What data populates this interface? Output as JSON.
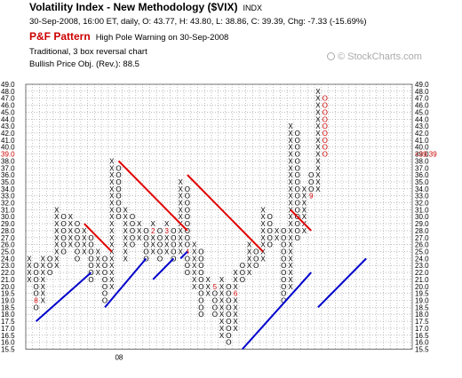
{
  "header": {
    "title": "Volatility Index - New Methodology ($VIX)",
    "exchange": "INDX",
    "quote": "30-Sep-2008, 16:00 ET, daily, O: 43.77, H: 43.80, L: 38.86, C: 39.39, Chg: -7.33 (-15.69%)",
    "pattern_name": "P&F Pattern",
    "pattern_desc": "High Pole Warning on 30-Sep-2008",
    "method": "Traditional, 3 box reversal chart",
    "objective": "Bullish Price Obj. (Rev.): 88.5"
  },
  "watermark": "© StockCharts.com",
  "chart_data": {
    "type": "point-and-figure",
    "box_size": 1,
    "reversal": 3,
    "y_levels": [
      49,
      48,
      47,
      46,
      45,
      44,
      43,
      42,
      41,
      40,
      39,
      38,
      37,
      36,
      35,
      34,
      33,
      32,
      31,
      30,
      29,
      28,
      27,
      26,
      25,
      24,
      23,
      22,
      21,
      20,
      19.5,
      19,
      18.5,
      18,
      17.5,
      17,
      16.5,
      16,
      15.5
    ],
    "y_tick_labels": [
      "49.0",
      "48.0",
      "47.0",
      "46.0",
      "45.0",
      "44.0",
      "43.0",
      "42.0",
      "41.0",
      "40.0",
      "39.0",
      "38.0",
      "37.0",
      "36.0",
      "35.0",
      "34.0",
      "33.0",
      "32.0",
      "31.0",
      "30.0",
      "29.0",
      "28.0",
      "27.0",
      "26.0",
      "25.0",
      "24.0",
      "23.0",
      "22.0",
      "21.0",
      "20.0",
      "19.5",
      "19.0",
      "18.5",
      "18.0",
      "17.5",
      "17.0",
      "16.5",
      "16.0",
      "15.5"
    ],
    "last_price_label": "39.0",
    "last_price_marker": "<39.39",
    "x_label": "08",
    "x_label_column": 13,
    "columns": [
      {
        "t": "X",
        "from": 21,
        "to": 24
      },
      {
        "t": "O",
        "from": 18.5,
        "to": 23
      },
      {
        "t": "X",
        "from": 19,
        "to": 24
      },
      {
        "t": "O",
        "from": 22,
        "to": 24
      },
      {
        "t": "X",
        "from": 23,
        "to": 31
      },
      {
        "t": "O",
        "from": 25,
        "to": 30
      },
      {
        "t": "X",
        "from": 26,
        "to": 30
      },
      {
        "t": "O",
        "from": 24,
        "to": 29
      },
      {
        "t": "X",
        "from": 25,
        "to": 28
      },
      {
        "t": "O",
        "from": 21,
        "to": 27
      },
      {
        "t": "X",
        "from": 22,
        "to": 25
      },
      {
        "t": "O",
        "from": 19,
        "to": 24
      },
      {
        "t": "X",
        "from": 20,
        "to": 38
      },
      {
        "t": "O",
        "from": 30,
        "to": 37
      },
      {
        "t": "X",
        "from": 24,
        "to": 31
      },
      {
        "t": "O",
        "from": 26,
        "to": 30
      },
      {
        "t": "X",
        "from": 27,
        "to": 29
      },
      {
        "t": "O",
        "from": 24,
        "to": 28
      },
      {
        "t": "X",
        "from": 25,
        "to": 29
      },
      {
        "t": "O",
        "from": 24,
        "to": 28
      },
      {
        "t": "X",
        "from": 25,
        "to": 29
      },
      {
        "t": "O",
        "from": 24,
        "to": 28
      },
      {
        "t": "X",
        "from": 25,
        "to": 35
      },
      {
        "t": "O",
        "from": 22,
        "to": 34
      },
      {
        "t": "X",
        "from": 20,
        "to": 26
      },
      {
        "t": "O",
        "from": 18,
        "to": 25
      },
      {
        "t": "X",
        "from": 19.5,
        "to": 21
      },
      {
        "t": "O",
        "from": 18,
        "to": 20
      },
      {
        "t": "X",
        "from": 16.5,
        "to": 21
      },
      {
        "t": "O",
        "from": 16,
        "to": 20
      },
      {
        "t": "X",
        "from": 17,
        "to": 22
      },
      {
        "t": "O",
        "from": 21,
        "to": 23
      },
      {
        "t": "X",
        "from": 22,
        "to": 26
      },
      {
        "t": "O",
        "from": 23,
        "to": 25
      },
      {
        "t": "X",
        "from": 24,
        "to": 31
      },
      {
        "t": "O",
        "from": 26,
        "to": 30
      },
      {
        "t": "X",
        "from": 27,
        "to": 28
      },
      {
        "t": "O",
        "from": 19,
        "to": 28
      },
      {
        "t": "X",
        "from": 20,
        "to": 43
      },
      {
        "t": "O",
        "from": 27,
        "to": 42
      },
      {
        "t": "X",
        "from": 28,
        "to": 34
      },
      {
        "t": "O",
        "from": 33,
        "to": 36
      },
      {
        "t": "X",
        "from": 34,
        "to": 48
      },
      {
        "t": "O",
        "from": 39,
        "to": 47
      }
    ],
    "month_markers": [
      {
        "label": "8",
        "col": 1,
        "price": 19
      },
      {
        "label": "1",
        "col": 13,
        "price": 24
      },
      {
        "label": "2",
        "col": 18,
        "price": 28
      },
      {
        "label": "3",
        "col": 20,
        "price": 28
      },
      {
        "label": "4",
        "col": 23,
        "price": 25
      },
      {
        "label": "5",
        "col": 27,
        "price": 20
      },
      {
        "label": "6",
        "col": 30,
        "price": 19.5
      },
      {
        "label": "7",
        "col": 36,
        "price": 26
      },
      {
        "label": "8",
        "col": 39,
        "price": 22
      },
      {
        "label": "9",
        "col": 41,
        "price": 33
      }
    ],
    "trendlines": [
      {
        "type": "resistance",
        "color": "#e00000",
        "from": {
          "col": 13,
          "price": 38
        },
        "to": {
          "col": 23,
          "price": 28
        }
      },
      {
        "type": "resistance",
        "color": "#e00000",
        "from": {
          "col": 8,
          "price": 29
        },
        "to": {
          "col": 12,
          "price": 25
        }
      },
      {
        "type": "resistance",
        "color": "#e00000",
        "from": {
          "col": 23,
          "price": 36
        },
        "to": {
          "col": 34,
          "price": 25
        }
      },
      {
        "type": "resistance",
        "color": "#e00000",
        "from": {
          "col": 38,
          "price": 31
        },
        "to": {
          "col": 41,
          "price": 28
        }
      },
      {
        "type": "support",
        "color": "#0000cc",
        "from": {
          "col": 1,
          "price": 17.5
        },
        "to": {
          "col": 9,
          "price": 22
        }
      },
      {
        "type": "support",
        "color": "#0000cc",
        "from": {
          "col": 11,
          "price": 18.5
        },
        "to": {
          "col": 17,
          "price": 24
        }
      },
      {
        "type": "support",
        "color": "#0000cc",
        "from": {
          "col": 18,
          "price": 21
        },
        "to": {
          "col": 21,
          "price": 24
        }
      },
      {
        "type": "support",
        "color": "#0000cc",
        "from": {
          "col": 22,
          "price": 24
        },
        "to": {
          "col": 23,
          "price": 25
        }
      },
      {
        "type": "support",
        "color": "#0000cc",
        "from": {
          "col": 31,
          "price": 15.5
        },
        "to": {
          "col": 41,
          "price": 22
        }
      },
      {
        "type": "support",
        "color": "#0000cc",
        "from": {
          "col": 42,
          "price": 18.5
        },
        "to": {
          "col": 49,
          "price": 24
        }
      }
    ],
    "colors": {
      "x_mark": "#000000",
      "o_mark": "#000000",
      "last_o_mark": "#cc0000",
      "month_marker": "#cc0000",
      "resistance": "#e00000",
      "support": "#0000cc",
      "grid": "#999999"
    }
  }
}
